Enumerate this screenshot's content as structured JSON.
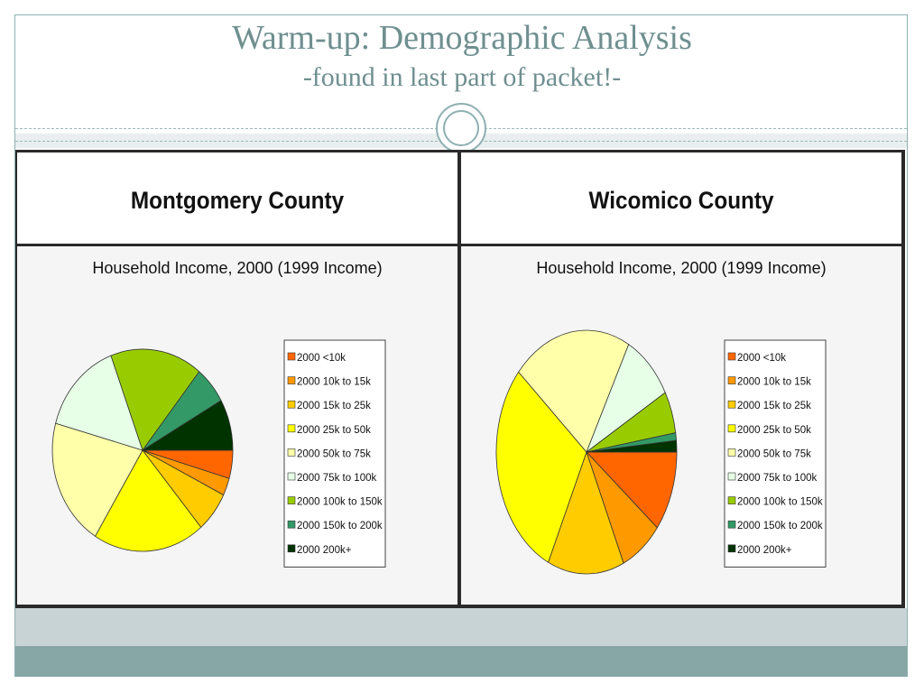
{
  "slide": {
    "title": "Warm-up: Demographic Analysis",
    "subtitle": "-found in last part of packet!-"
  },
  "chart_data": [
    {
      "type": "pie",
      "county": "Montgomery County",
      "title": "Household Income, 2000 (1999 Income)",
      "categories": [
        "2000 <10k",
        "2000 10k to 15k",
        "2000 15k to 25k",
        "2000 25k to 50k",
        "2000 50k to 75k",
        "2000 75k to 100k",
        "2000 100k to 150k",
        "2000 150k to 200k",
        "2000 200k+"
      ],
      "values": [
        4.5,
        2.8,
        6.5,
        20.0,
        20.5,
        15.0,
        16.5,
        6.0,
        8.2
      ],
      "colors": [
        "#ff6600",
        "#ff9900",
        "#ffcc00",
        "#ffff00",
        "#ffffaa",
        "#e6ffe6",
        "#99cc00",
        "#339966",
        "#003300"
      ],
      "legend_position": "right"
    },
    {
      "type": "pie",
      "county": "Wicomico County",
      "title": "Household Income, 2000 (1999 Income)",
      "categories": [
        "2000 <10k",
        "2000 10k to 15k",
        "2000 15k to 25k",
        "2000 25k to 50k",
        "2000 50k to 75k",
        "2000 75k to 100k",
        "2000 100k to 150k",
        "2000 150k to 200k",
        "2000 200k+"
      ],
      "values": [
        10.5,
        7.5,
        13.5,
        29.0,
        21.0,
        9.0,
        5.5,
        1.0,
        1.5
      ],
      "colors": [
        "#ff6600",
        "#ff9900",
        "#ffcc00",
        "#ffff00",
        "#ffffaa",
        "#e6ffe6",
        "#99cc00",
        "#339966",
        "#003300"
      ],
      "legend_position": "right"
    }
  ]
}
